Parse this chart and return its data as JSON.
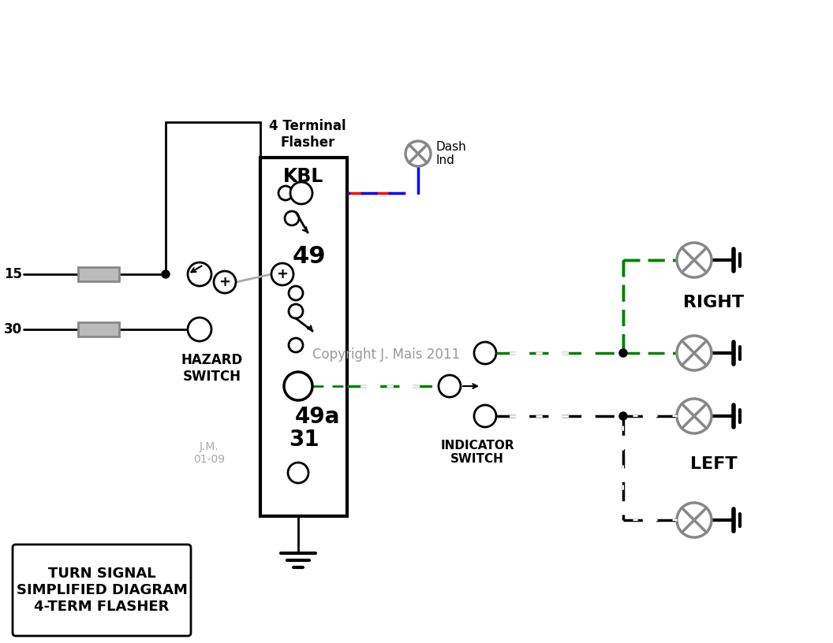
{
  "bg_color": "#ffffff",
  "title_box_text": "TURN SIGNAL\nSIMPLIFIED DIAGRAM\n4-TERM FLASHER",
  "copyright": "Copyright J. Mais 2011",
  "initials": "J.M.\n01-09",
  "flasher_label": "4 Terminal\nFlasher",
  "right_label": "RIGHT",
  "left_label": "LEFT",
  "indicator_label": "INDICATOR\nSWITCH",
  "hazard_label": "HAZARD\nSWITCH",
  "label_15": "15",
  "label_30": "30"
}
